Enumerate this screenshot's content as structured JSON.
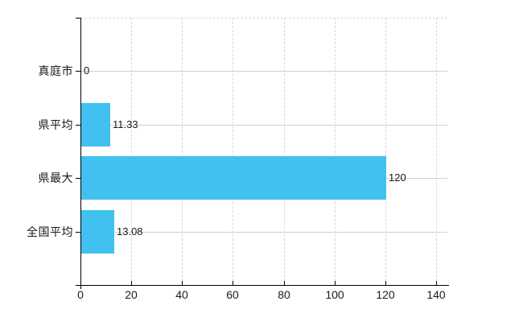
{
  "chart_data": {
    "type": "bar",
    "orientation": "horizontal",
    "title": "",
    "xlabel": "",
    "ylabel": "",
    "categories": [
      "真庭市",
      "県平均",
      "県最大",
      "全国平均"
    ],
    "values": [
      0,
      11.33,
      120,
      13.08
    ],
    "value_labels": [
      "0",
      "11.33",
      "120",
      "13.08"
    ],
    "xlim": [
      0,
      140
    ],
    "xticks": [
      0,
      20,
      40,
      60,
      80,
      100,
      120,
      140
    ],
    "xtick_labels": [
      "0",
      "20",
      "40",
      "60",
      "80",
      "100",
      "120",
      "140"
    ],
    "legend": "none",
    "grid": {
      "vertical": "dashed",
      "horizontal": "solid",
      "top_border": "dashed"
    },
    "colors": {
      "bar": "#41C1F0",
      "axis": "#000000",
      "grid_vertical": "#d8d8d8",
      "grid_horizontal": "#d0d0d0",
      "text": "#1a1a1a",
      "background": "#ffffff"
    }
  }
}
